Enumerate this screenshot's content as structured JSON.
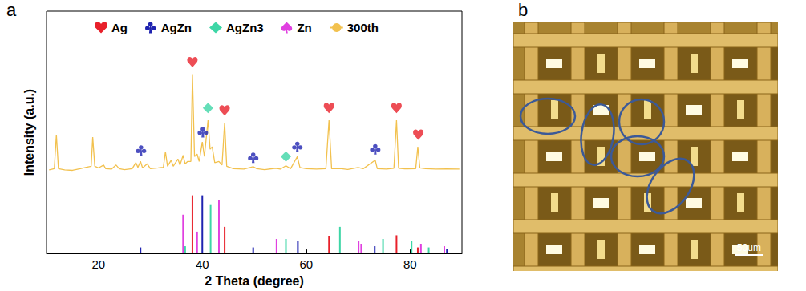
{
  "chart_data": {
    "type": "line",
    "panel_label": "a",
    "xlabel": "2 Theta (degree)",
    "ylabel": "Intensity (a.u.)",
    "xlim": [
      10,
      90
    ],
    "xticks": [
      20,
      40,
      60,
      80
    ],
    "ylim": [
      0,
      100
    ],
    "grid": false,
    "tick_labels": "x",
    "legend": "top",
    "series": [
      {
        "name": "Ag",
        "type": "reference",
        "color": "#e8202a",
        "marker": "heart",
        "x": [
          38.1,
          44.3,
          64.4,
          77.4,
          81.5
        ],
        "values": [
          24,
          11,
          7,
          7.5,
          2.5
        ],
        "peaks": {
          "x": [
            38.1,
            44.3,
            64.4,
            77.4,
            81.6
          ],
          "values": [
            79,
            59,
            60,
            60,
            49
          ]
        }
      },
      {
        "name": "AgZn",
        "type": "reference",
        "color": "#1f23b0",
        "marker": "club",
        "x": [
          28.1,
          40.0,
          49.8,
          58.4,
          73.2,
          87.1
        ],
        "values": [
          2.5,
          24,
          2.5,
          5,
          3,
          2
        ],
        "peaks": {
          "x": [
            28.2,
            40.1,
            49.8,
            58.3,
            73.3
          ],
          "values": [
            42.5,
            50,
            39.5,
            44,
            43
          ]
        }
      },
      {
        "name": "AgZn3",
        "type": "reference",
        "color": "#3dd6a6",
        "marker": "diamond",
        "x": [
          36.7,
          41.6,
          56.1,
          66.5,
          74.8,
          80.3,
          83.6
        ],
        "values": [
          3,
          20,
          6,
          11,
          6,
          5,
          2.5
        ],
        "peaks": {
          "x": [
            41.1,
            56.1
          ],
          "values": [
            60,
            40
          ]
        }
      },
      {
        "name": "Zn",
        "type": "reference",
        "color": "#e040e0",
        "marker": "spade",
        "x": [
          36.3,
          39.0,
          43.2,
          54.3,
          70.1,
          70.6,
          82.1,
          86.6
        ],
        "values": [
          16,
          9,
          22,
          6,
          5,
          4,
          4,
          3
        ]
      },
      {
        "name": "300th",
        "type": "line",
        "color": "#f2c14e",
        "x": [
          10.5,
          11.5,
          11.9,
          12.3,
          13.5,
          15,
          16.5,
          17.5,
          18.6,
          18.9,
          19.3,
          20,
          21,
          21.4,
          22.5,
          23.4,
          24,
          25,
          26.5,
          27.2,
          27.6,
          28.1,
          28.5,
          29.4,
          30,
          31.5,
          32.5,
          32.9,
          33.3,
          34,
          34.4,
          35.3,
          35.7,
          36.3,
          36.7,
          37.2,
          37.8,
          38.1,
          38.5,
          39.0,
          39.4,
          40.0,
          40.4,
          41.1,
          41.5,
          41.9,
          42.4,
          43.2,
          43.8,
          44.3,
          44.7,
          46,
          48,
          49.8,
          50.5,
          52,
          54.2,
          55,
          56.1,
          57,
          58.3,
          58.8,
          60,
          62,
          63.8,
          64.4,
          64.9,
          66.8,
          68,
          70,
          71,
          73.3,
          73.7,
          75.5,
          76.9,
          77.4,
          77.8,
          79,
          81.1,
          81.5,
          81.9,
          83,
          85,
          87,
          89.5
        ],
        "values": [
          34.5,
          35,
          49,
          35,
          34.5,
          34.3,
          35,
          35.5,
          36,
          48,
          36,
          35.3,
          36.5,
          35,
          34.8,
          36.5,
          35,
          34.6,
          35,
          37.5,
          35.5,
          38,
          35.3,
          37,
          35,
          35.3,
          35.6,
          42,
          36,
          38.5,
          36,
          39,
          36.5,
          40.5,
          37,
          38,
          38,
          74,
          40,
          41,
          38,
          46,
          40,
          55,
          43,
          44,
          37.5,
          38,
          36.5,
          54,
          36,
          35,
          34.8,
          35.8,
          35,
          34.6,
          35.2,
          34.8,
          36.2,
          35,
          40,
          35.5,
          35,
          34.8,
          35,
          55,
          35,
          35,
          34.7,
          35.5,
          35,
          38.5,
          35,
          34.8,
          35.2,
          55,
          35.2,
          34.9,
          35,
          44,
          35.3,
          35,
          34.8,
          34.9,
          34.8
        ]
      }
    ]
  },
  "image_panel": {
    "panel_label": "b",
    "scale_bar": "50um"
  }
}
